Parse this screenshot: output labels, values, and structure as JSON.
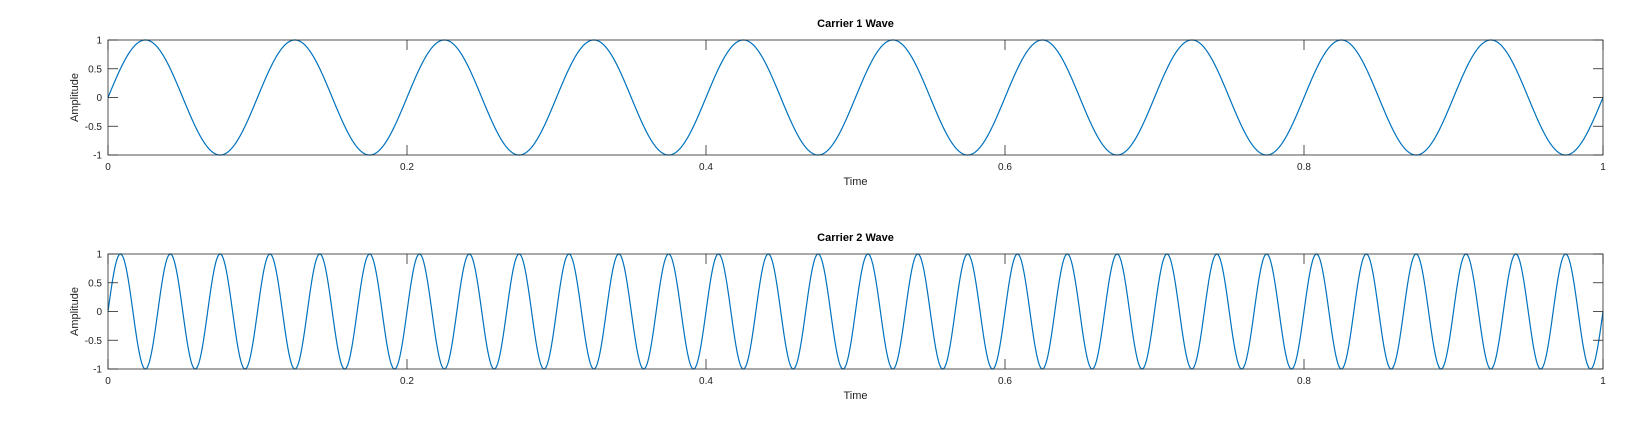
{
  "chart_data": [
    {
      "type": "line",
      "title": "Carrier 1 Wave",
      "xlabel": "Time",
      "ylabel": "Amplitude",
      "xlim": [
        0,
        1
      ],
      "ylim": [
        -1,
        1
      ],
      "xticks": [
        "0",
        "0.2",
        "0.4",
        "0.6",
        "0.8",
        "1"
      ],
      "yticks": [
        "-1",
        "-0.5",
        "0",
        "0.5",
        "1"
      ],
      "grid": false,
      "series": [
        {
          "function": "sin",
          "amplitude": 1,
          "frequency": 10,
          "color": "#0072BD"
        }
      ]
    },
    {
      "type": "line",
      "title": "Carrier 2 Wave",
      "xlabel": "Time",
      "ylabel": "Amplitude",
      "xlim": [
        0,
        1
      ],
      "ylim": [
        -1,
        1
      ],
      "xticks": [
        "0",
        "0.2",
        "0.4",
        "0.6",
        "0.8",
        "1"
      ],
      "yticks": [
        "-1",
        "-0.5",
        "0",
        "0.5",
        "1"
      ],
      "grid": false,
      "series": [
        {
          "function": "sin",
          "amplitude": 1,
          "frequency": 30,
          "color": "#0072BD"
        }
      ]
    }
  ]
}
